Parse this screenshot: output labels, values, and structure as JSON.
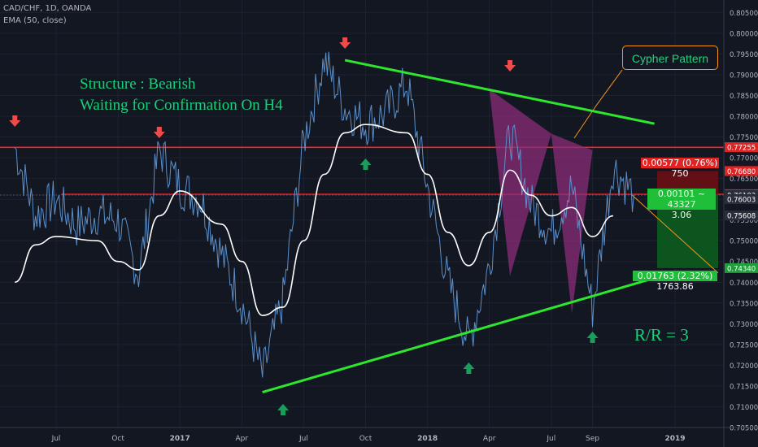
{
  "header": {
    "symbol_line": "CAD/CHF, 1D, OANDA",
    "indicator_line": "EMA (50, close)"
  },
  "annotations": {
    "structure": "Structure : Bearish",
    "waiting": "Waiting for Confirmation On H4",
    "pattern": "Cypher Pattern",
    "rr": "R/R = 3"
  },
  "position_tool": {
    "stop_label": "0.00577 (0.76%) 750",
    "entry_line1": "0.00101 ~ 43327",
    "entry_line2": "3.06",
    "target_label": "0.01763 (2.32%) 1763.86"
  },
  "colors": {
    "background": "#131722",
    "price": "#5b8fc9",
    "ema": "#ffffff",
    "trendline": "#2ee62e",
    "level": "#ff2020",
    "pattern_fill": "#8b2d7a",
    "loss_zone": "#6b0f14",
    "profit_zone": "#0d5c1e",
    "arrow_down": "#ef4b4b",
    "arrow_up": "#1a9e5c",
    "annotation_text": "#17d17a"
  },
  "chart_data": {
    "type": "line",
    "title": "CAD/CHF, 1D, OANDA",
    "y_axis": {
      "range": [
        0.705,
        0.808
      ],
      "ticks": [
        "0.80500",
        "0.80000",
        "0.79500",
        "0.79000",
        "0.78500",
        "0.78000",
        "0.77500",
        "0.77000",
        "0.76500",
        "0.76000",
        "0.75500",
        "0.75000",
        "0.74500",
        "0.74000",
        "0.73500",
        "0.73000",
        "0.72500",
        "0.72000",
        "0.71500",
        "0.71000",
        "0.70500"
      ]
    },
    "x_axis": {
      "ticks": [
        "Jul",
        "Oct",
        "2017",
        "Apr",
        "Jul",
        "Oct",
        "2018",
        "Apr",
        "Jul",
        "Sep",
        "2019"
      ]
    },
    "price_labels": [
      {
        "value": "0.77255",
        "color": "#e02424"
      },
      {
        "value": "0.76680",
        "color": "#e02424"
      },
      {
        "value": "0.76122",
        "color": "#e02424"
      },
      {
        "value": "0.76103",
        "color": "#2a2e39"
      },
      {
        "value": "0.76003",
        "color": "#2a2e39"
      },
      {
        "value": "0.75608",
        "color": "#2a2e39"
      },
      {
        "value": "0.74340",
        "color": "#1f9e3a"
      }
    ],
    "horizontal_levels": [
      0.7725,
      0.7612
    ],
    "close_series": [
      {
        "date": "2016-05",
        "close": 0.7725
      },
      {
        "date": "2016-06",
        "close": 0.756
      },
      {
        "date": "2016-07",
        "close": 0.76
      },
      {
        "date": "2016-08",
        "close": 0.7535
      },
      {
        "date": "2016-09",
        "close": 0.7565
      },
      {
        "date": "2016-10",
        "close": 0.755
      },
      {
        "date": "2016-11",
        "close": 0.742
      },
      {
        "date": "2016-12",
        "close": 0.772
      },
      {
        "date": "2017-01",
        "close": 0.763
      },
      {
        "date": "2017-02",
        "close": 0.76
      },
      {
        "date": "2017-03",
        "close": 0.747
      },
      {
        "date": "2017-04",
        "close": 0.735
      },
      {
        "date": "2017-05",
        "close": 0.7175
      },
      {
        "date": "2017-06",
        "close": 0.736
      },
      {
        "date": "2017-07",
        "close": 0.774
      },
      {
        "date": "2017-08",
        "close": 0.7935
      },
      {
        "date": "2017-09",
        "close": 0.782
      },
      {
        "date": "2017-10",
        "close": 0.778
      },
      {
        "date": "2017-11",
        "close": 0.781
      },
      {
        "date": "2017-12",
        "close": 0.788
      },
      {
        "date": "2018-01",
        "close": 0.763
      },
      {
        "date": "2018-02",
        "close": 0.74
      },
      {
        "date": "2018-03",
        "close": 0.7255
      },
      {
        "date": "2018-04",
        "close": 0.744
      },
      {
        "date": "2018-05",
        "close": 0.776
      },
      {
        "date": "2018-06",
        "close": 0.759
      },
      {
        "date": "2018-07",
        "close": 0.752
      },
      {
        "date": "2018-08",
        "close": 0.763
      },
      {
        "date": "2018-09",
        "close": 0.7335
      },
      {
        "date": "2018-10",
        "close": 0.768
      },
      {
        "date": "2018-11",
        "close": 0.761
      }
    ],
    "ema_series": [
      {
        "date": "2016-05",
        "value": 0.74
      },
      {
        "date": "2016-06",
        "value": 0.749
      },
      {
        "date": "2016-07",
        "value": 0.751
      },
      {
        "date": "2016-09",
        "value": 0.75
      },
      {
        "date": "2016-10",
        "value": 0.745
      },
      {
        "date": "2016-11",
        "value": 0.743
      },
      {
        "date": "2016-12",
        "value": 0.756
      },
      {
        "date": "2017-01",
        "value": 0.762
      },
      {
        "date": "2017-03",
        "value": 0.754
      },
      {
        "date": "2017-04",
        "value": 0.745
      },
      {
        "date": "2017-05",
        "value": 0.732
      },
      {
        "date": "2017-06",
        "value": 0.734
      },
      {
        "date": "2017-07",
        "value": 0.75
      },
      {
        "date": "2017-08",
        "value": 0.766
      },
      {
        "date": "2017-09",
        "value": 0.776
      },
      {
        "date": "2017-10",
        "value": 0.778
      },
      {
        "date": "2017-12",
        "value": 0.776
      },
      {
        "date": "2018-01",
        "value": 0.766
      },
      {
        "date": "2018-02",
        "value": 0.752
      },
      {
        "date": "2018-03",
        "value": 0.744
      },
      {
        "date": "2018-04",
        "value": 0.752
      },
      {
        "date": "2018-05",
        "value": 0.767
      },
      {
        "date": "2018-06",
        "value": 0.761
      },
      {
        "date": "2018-07",
        "value": 0.756
      },
      {
        "date": "2018-08",
        "value": 0.758
      },
      {
        "date": "2018-09",
        "value": 0.751
      },
      {
        "date": "2018-10",
        "value": 0.756
      }
    ],
    "trendlines": [
      {
        "name": "resistance",
        "from": {
          "date": "2017-09",
          "value": 0.7935
        },
        "to": {
          "date": "2018-12",
          "value": 0.7782
        }
      },
      {
        "name": "support",
        "from": {
          "date": "2017-05",
          "value": 0.7135
        },
        "to": {
          "date": "2018-12",
          "value": 0.741
        }
      }
    ],
    "cypher_points": [
      {
        "date": "2018-04",
        "value": 0.7865
      },
      {
        "date": "2018-05",
        "value": 0.7415
      },
      {
        "date": "2018-07",
        "value": 0.7758
      },
      {
        "date": "2018-08",
        "value": 0.7325
      },
      {
        "date": "2018-09",
        "value": 0.7718
      }
    ],
    "signals": [
      {
        "date": "2016-05",
        "direction": "down"
      },
      {
        "date": "2016-12",
        "direction": "down"
      },
      {
        "date": "2017-09",
        "direction": "down"
      },
      {
        "date": "2018-05",
        "direction": "down"
      },
      {
        "date": "2017-10",
        "direction": "up"
      },
      {
        "date": "2017-06",
        "direction": "up"
      },
      {
        "date": "2018-03",
        "direction": "up"
      },
      {
        "date": "2018-09",
        "direction": "up"
      }
    ],
    "grid": true,
    "legend": "top-left"
  }
}
